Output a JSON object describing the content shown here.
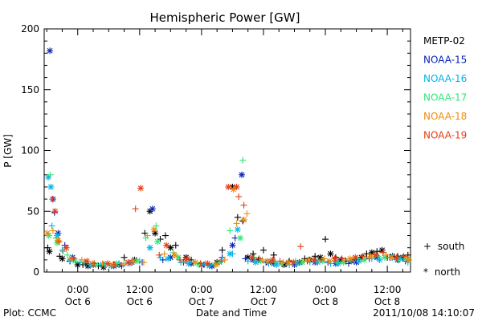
{
  "chart_data": {
    "type": "scatter",
    "title": "Hemispheric Power [GW]",
    "ylabel": "P [GW]",
    "xlabel": "Date and Time",
    "ylim": [
      0,
      200
    ],
    "y_ticks": [
      "0",
      "50",
      "100",
      "150",
      "200"
    ],
    "xlim_hours": [
      -6.5,
      64.5
    ],
    "x_ticks": [
      {
        "hour": 0,
        "time": "0:00",
        "date": "Oct 6"
      },
      {
        "hour": 12,
        "time": "12:00",
        "date": "Oct 6"
      },
      {
        "hour": 24,
        "time": "0:00",
        "date": "Oct 7"
      },
      {
        "hour": 36,
        "time": "12:00",
        "date": "Oct 7"
      },
      {
        "hour": 48,
        "time": "0:00",
        "date": "Oct 8"
      },
      {
        "hour": 60,
        "time": "12:00",
        "date": "Oct 8"
      }
    ],
    "legend_location": "right",
    "series": [
      {
        "name": "METP-02",
        "color": "#000000",
        "south": [
          [
            -5.8,
            20
          ],
          [
            -3.5,
            13
          ],
          [
            -1.5,
            9
          ],
          [
            1,
            6
          ],
          [
            4,
            5
          ],
          [
            7,
            6
          ],
          [
            9,
            12
          ],
          [
            13,
            32
          ],
          [
            16,
            27
          ],
          [
            17,
            30
          ],
          [
            19,
            22
          ],
          [
            22,
            10
          ],
          [
            26,
            5
          ],
          [
            28,
            18
          ],
          [
            31,
            45
          ],
          [
            32,
            42
          ],
          [
            34,
            15
          ],
          [
            36,
            18
          ],
          [
            38,
            14
          ],
          [
            41,
            9
          ],
          [
            44,
            11
          ],
          [
            46,
            13
          ],
          [
            48,
            27
          ],
          [
            50,
            12
          ],
          [
            52,
            9
          ],
          [
            54,
            10
          ],
          [
            56,
            15
          ],
          [
            58,
            17
          ],
          [
            60,
            12
          ],
          [
            62,
            13
          ],
          [
            64,
            14
          ]
        ],
        "north": [
          [
            -5.5,
            17
          ],
          [
            -3,
            11
          ],
          [
            0,
            6
          ],
          [
            2,
            5
          ],
          [
            5,
            4
          ],
          [
            8,
            6
          ],
          [
            11,
            10
          ],
          [
            14,
            50
          ],
          [
            15,
            32
          ],
          [
            18,
            20
          ],
          [
            21,
            12
          ],
          [
            24,
            6
          ],
          [
            27,
            8
          ],
          [
            30,
            70
          ],
          [
            33,
            12
          ],
          [
            35,
            10
          ],
          [
            37,
            8
          ],
          [
            40,
            6
          ],
          [
            43,
            8
          ],
          [
            45,
            10
          ],
          [
            47,
            12
          ],
          [
            49,
            15
          ],
          [
            51,
            10
          ],
          [
            53,
            9
          ],
          [
            55,
            12
          ],
          [
            57,
            16
          ],
          [
            59,
            18
          ],
          [
            61,
            13
          ],
          [
            63,
            12
          ]
        ]
      },
      {
        "name": "NOAA-15",
        "color": "#0a22b4",
        "south": [
          [
            -4.5,
            49
          ],
          [
            -2.5,
            22
          ],
          [
            1.5,
            7
          ],
          [
            5,
            6
          ],
          [
            8.5,
            5
          ],
          [
            12.5,
            8
          ],
          [
            16.5,
            10
          ],
          [
            20.5,
            8
          ],
          [
            24.5,
            6
          ],
          [
            28,
            12
          ],
          [
            30.5,
            28
          ],
          [
            32.5,
            11
          ],
          [
            36.5,
            8
          ],
          [
            40.5,
            7
          ],
          [
            44.5,
            9
          ],
          [
            48.5,
            8
          ],
          [
            52.5,
            7
          ],
          [
            56.5,
            11
          ],
          [
            60.5,
            12
          ],
          [
            63.5,
            9
          ]
        ],
        "north": [
          [
            -5.4,
            182
          ],
          [
            -4.8,
            60
          ],
          [
            -3.8,
            32
          ],
          [
            -1,
            12
          ],
          [
            3,
            6
          ],
          [
            7,
            5
          ],
          [
            10.5,
            8
          ],
          [
            14.5,
            52
          ],
          [
            18,
            12
          ],
          [
            22,
            7
          ],
          [
            26,
            5
          ],
          [
            30,
            22
          ],
          [
            31.8,
            80
          ],
          [
            34,
            10
          ],
          [
            38,
            7
          ],
          [
            42,
            6
          ],
          [
            46,
            8
          ],
          [
            50,
            7
          ],
          [
            54,
            8
          ],
          [
            58,
            12
          ],
          [
            62,
            10
          ]
        ]
      },
      {
        "name": "NOAA-16",
        "color": "#00b4e6",
        "south": [
          [
            -5,
            38
          ],
          [
            -3,
            18
          ],
          [
            0.5,
            8
          ],
          [
            4.5,
            6
          ],
          [
            8,
            7
          ],
          [
            12,
            9
          ],
          [
            16,
            12
          ],
          [
            20,
            8
          ],
          [
            24,
            6
          ],
          [
            28,
            10
          ],
          [
            30,
            15
          ],
          [
            33,
            9
          ],
          [
            37,
            7
          ],
          [
            41,
            6
          ],
          [
            45,
            8
          ],
          [
            49,
            7
          ],
          [
            53,
            9
          ],
          [
            57,
            11
          ],
          [
            61,
            12
          ],
          [
            64,
            8
          ]
        ],
        "north": [
          [
            -5.7,
            78
          ],
          [
            -5.2,
            70
          ],
          [
            -4,
            30
          ],
          [
            -1.5,
            10
          ],
          [
            2.5,
            6
          ],
          [
            6.5,
            5
          ],
          [
            10,
            7
          ],
          [
            14,
            20
          ],
          [
            17.5,
            11
          ],
          [
            21.5,
            7
          ],
          [
            25.5,
            5
          ],
          [
            29.5,
            15
          ],
          [
            31,
            35
          ],
          [
            34.5,
            8
          ],
          [
            38.5,
            6
          ],
          [
            42.5,
            7
          ],
          [
            46.5,
            8
          ],
          [
            50.5,
            7
          ],
          [
            54.5,
            9
          ],
          [
            58.5,
            10
          ],
          [
            62.5,
            11
          ]
        ]
      },
      {
        "name": "NOAA-17",
        "color": "#2ee676",
        "south": [
          [
            -5.3,
            80
          ],
          [
            -4.2,
            28
          ],
          [
            -2,
            14
          ],
          [
            1.2,
            8
          ],
          [
            5.2,
            6
          ],
          [
            9.2,
            7
          ],
          [
            13.2,
            28
          ],
          [
            15.2,
            38
          ],
          [
            18.5,
            16
          ],
          [
            22.5,
            8
          ],
          [
            26.5,
            6
          ],
          [
            29.5,
            34
          ],
          [
            32,
            92
          ],
          [
            34.2,
            12
          ],
          [
            38.2,
            8
          ],
          [
            42.2,
            9
          ],
          [
            46.2,
            10
          ],
          [
            50.2,
            8
          ],
          [
            54.2,
            11
          ],
          [
            58.2,
            13
          ],
          [
            62.2,
            10
          ]
        ],
        "north": [
          [
            -5.6,
            30
          ],
          [
            -4,
            24
          ],
          [
            -0.5,
            9
          ],
          [
            3.5,
            6
          ],
          [
            7.5,
            7
          ],
          [
            11.5,
            9
          ],
          [
            15.5,
            25
          ],
          [
            19.5,
            12
          ],
          [
            23.5,
            6
          ],
          [
            27.5,
            8
          ],
          [
            31.5,
            28
          ],
          [
            35.5,
            9
          ],
          [
            39.5,
            7
          ],
          [
            43.5,
            8
          ],
          [
            47.5,
            9
          ],
          [
            51.5,
            8
          ],
          [
            55.5,
            10
          ],
          [
            59.5,
            12
          ],
          [
            63.5,
            11
          ]
        ]
      },
      {
        "name": "NOAA-18",
        "color": "#f08c0a",
        "south": [
          [
            -4.8,
            34
          ],
          [
            -2.8,
            17
          ],
          [
            0.8,
            10
          ],
          [
            4.8,
            7
          ],
          [
            8.8,
            6
          ],
          [
            12.8,
            8
          ],
          [
            13.5,
            30
          ],
          [
            16.8,
            15
          ],
          [
            20.8,
            9
          ],
          [
            24.8,
            7
          ],
          [
            28.5,
            10
          ],
          [
            30.8,
            40
          ],
          [
            32.8,
            48
          ],
          [
            35.8,
            10
          ],
          [
            39.8,
            8
          ],
          [
            43.8,
            9
          ],
          [
            47.8,
            11
          ],
          [
            51.8,
            10
          ],
          [
            55.8,
            12
          ],
          [
            59.8,
            14
          ],
          [
            63.8,
            12
          ]
        ],
        "north": [
          [
            -5.9,
            32
          ],
          [
            -3.8,
            26
          ],
          [
            -1.2,
            11
          ],
          [
            2.8,
            7
          ],
          [
            6.8,
            6
          ],
          [
            10.8,
            9
          ],
          [
            14.8,
            35
          ],
          [
            18.8,
            14
          ],
          [
            22.8,
            8
          ],
          [
            26.8,
            6
          ],
          [
            30.2,
            68
          ],
          [
            32.2,
            43
          ],
          [
            36.8,
            9
          ],
          [
            40.8,
            8
          ],
          [
            44.8,
            10
          ],
          [
            48.8,
            9
          ],
          [
            52.8,
            11
          ],
          [
            56.8,
            13
          ],
          [
            60.8,
            12
          ],
          [
            64.2,
            10
          ]
        ]
      },
      {
        "name": "NOAA-19",
        "color": "#e63c14",
        "south": [
          [
            -4.9,
            60
          ],
          [
            -3.6,
            25
          ],
          [
            -0.8,
            11
          ],
          [
            3.2,
            7
          ],
          [
            7.2,
            6
          ],
          [
            11.2,
            52
          ],
          [
            15.8,
            14
          ],
          [
            19.8,
            10
          ],
          [
            23.8,
            7
          ],
          [
            27.8,
            9
          ],
          [
            31.2,
            62
          ],
          [
            32.2,
            55
          ],
          [
            35.2,
            11
          ],
          [
            39.2,
            9
          ],
          [
            43.2,
            21
          ],
          [
            47.2,
            10
          ],
          [
            51.2,
            11
          ],
          [
            55.2,
            13
          ],
          [
            59.2,
            16
          ],
          [
            63.2,
            13
          ]
        ],
        "north": [
          [
            -4.4,
            50
          ],
          [
            -2.2,
            20
          ],
          [
            1.8,
            9
          ],
          [
            5.8,
            7
          ],
          [
            9.8,
            8
          ],
          [
            12.2,
            69
          ],
          [
            17.2,
            22
          ],
          [
            21.2,
            11
          ],
          [
            25.2,
            7
          ],
          [
            29.2,
            70
          ],
          [
            30.8,
            70
          ],
          [
            33.8,
            12
          ],
          [
            37.8,
            10
          ],
          [
            41.8,
            8
          ],
          [
            45.8,
            10
          ],
          [
            49.8,
            11
          ],
          [
            53.8,
            12
          ],
          [
            57.8,
            14
          ],
          [
            61.8,
            12
          ]
        ]
      }
    ],
    "markers": [
      {
        "symbol": "+",
        "label": "south"
      },
      {
        "symbol": "*",
        "label": "north"
      }
    ],
    "footer_left": "Plot: CCMC",
    "footer_right": "2011/10/08 14:10:07"
  }
}
